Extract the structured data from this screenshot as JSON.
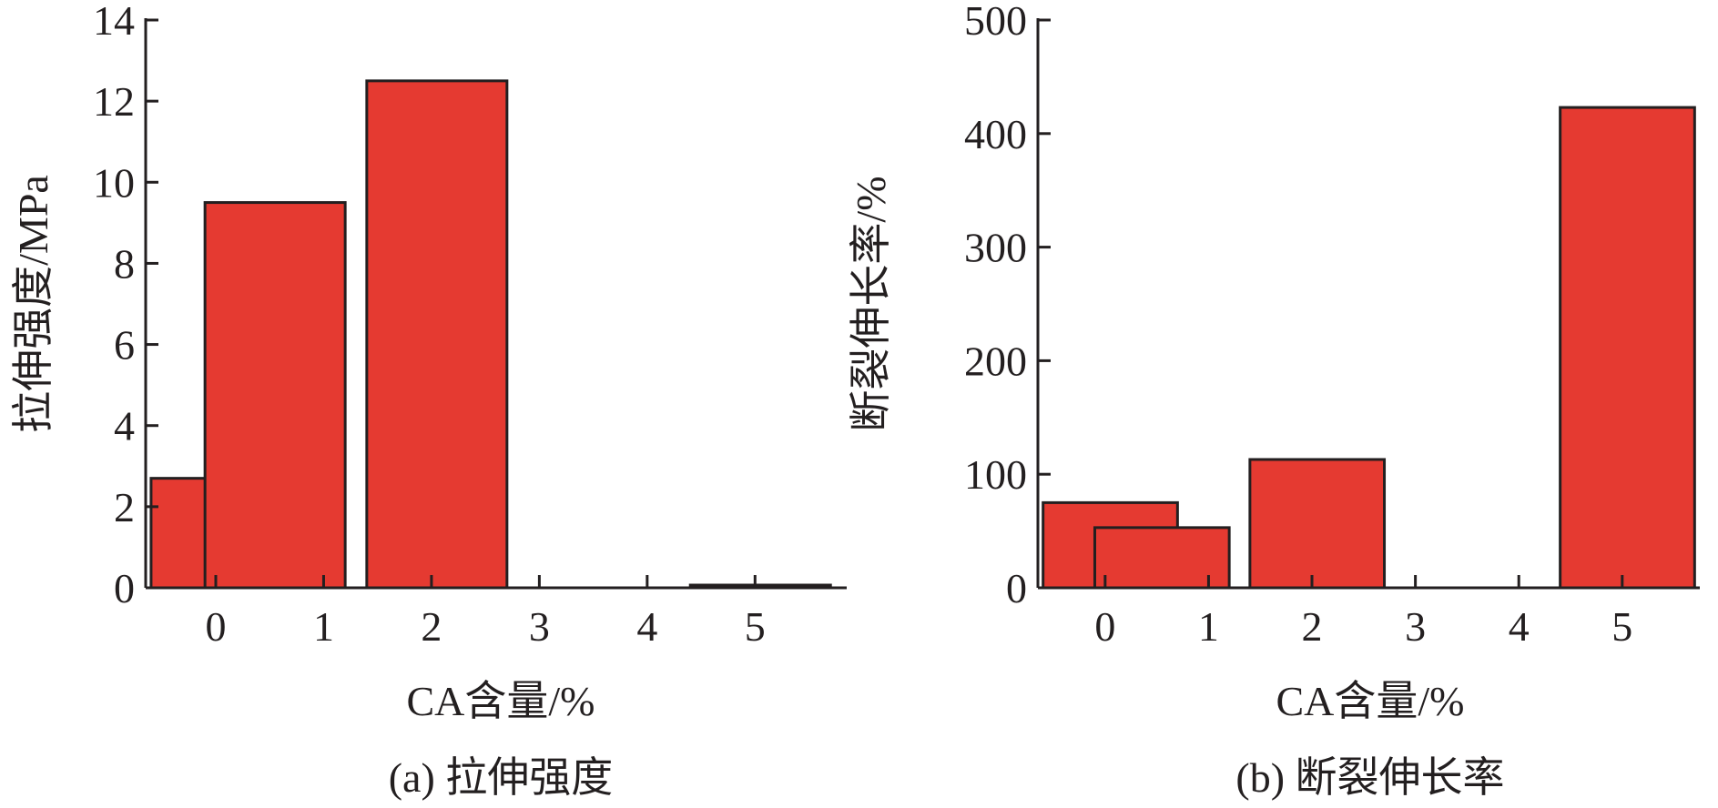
{
  "chart_data": [
    {
      "type": "bar",
      "caption": "(a) 拉伸强度",
      "xlabel": "CA含量/%",
      "ylabel": "拉伸强度/MPa",
      "x_ticks": [
        "0",
        "1",
        "2",
        "3",
        "4",
        "5"
      ],
      "y_ticks": [
        "0",
        "2",
        "4",
        "6",
        "8",
        "10",
        "12",
        "14"
      ],
      "ylim": [
        0,
        14
      ],
      "xlim": [
        -0.65,
        5.85
      ],
      "bars": [
        {
          "x_start": -0.6,
          "x_end": 0.7,
          "value": 2.7
        },
        {
          "x_start": -0.1,
          "x_end": 1.2,
          "value": 9.5
        },
        {
          "x_start": 1.4,
          "x_end": 2.7,
          "value": 12.5
        },
        {
          "x_start": 4.4,
          "x_end": 5.7,
          "value": 0.05
        }
      ],
      "bar_color": "#e53a31",
      "grid": false
    },
    {
      "type": "bar",
      "caption": "(b) 断裂伸长率",
      "xlabel": "CA含量/%",
      "ylabel": "断裂伸长率/%",
      "x_ticks": [
        "0",
        "1",
        "2",
        "3",
        "4",
        "5"
      ],
      "y_ticks": [
        "0",
        "100",
        "200",
        "300",
        "400",
        "500"
      ],
      "ylim": [
        0,
        500
      ],
      "xlim": [
        -0.65,
        5.75
      ],
      "bars": [
        {
          "x_start": -0.6,
          "x_end": 0.7,
          "value": 75
        },
        {
          "x_start": -0.1,
          "x_end": 1.2,
          "value": 53
        },
        {
          "x_start": 1.4,
          "x_end": 2.7,
          "value": 113
        },
        {
          "x_start": 4.4,
          "x_end": 5.7,
          "value": 423
        }
      ],
      "bar_color": "#e53a31",
      "grid": false
    }
  ]
}
